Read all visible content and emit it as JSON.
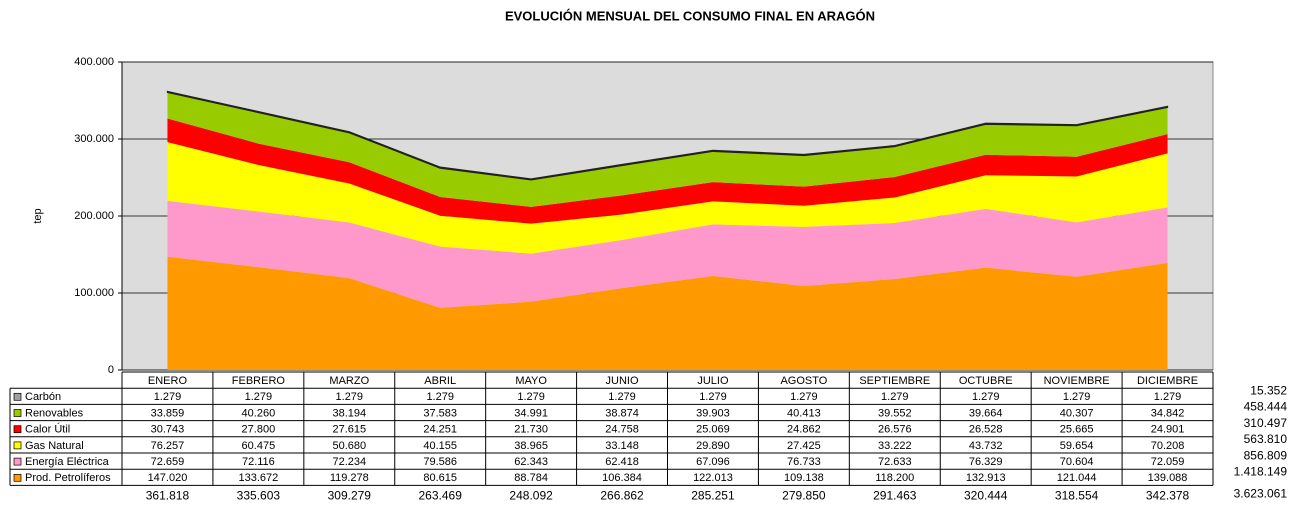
{
  "chart_data": {
    "type": "stacked_area",
    "title": "EVOLUCIÓN MENSUAL DEL CONSUMO FINAL EN ARAGÓN",
    "y_label": "tep",
    "categories": [
      "ENERO",
      "FEBRERO",
      "MARZO",
      "ABRIL",
      "MAYO",
      "JUNIO",
      "JULIO",
      "AGOSTO",
      "SEPTIEMBRE",
      "OCTUBRE",
      "NOVIEMBRE",
      "DICIEMBRE"
    ],
    "ylim": [
      0,
      400000
    ],
    "yticks": [
      0,
      {
        "value": 100000,
        "label": "100.000"
      },
      {
        "value": 200000,
        "label": "200.000"
      },
      {
        "value": 300000,
        "label": "300.000"
      },
      {
        "value": 400000,
        "label": "400.000"
      }
    ],
    "grid": true,
    "series": [
      {
        "name": "Carbón",
        "color": "#a0a0a0",
        "values": [
          1279,
          1279,
          1279,
          1279,
          1279,
          1279,
          1279,
          1279,
          1279,
          1279,
          1279,
          1279
        ],
        "value_labels": [
          "1.279",
          "1.279",
          "1.279",
          "1.279",
          "1.279",
          "1.279",
          "1.279",
          "1.279",
          "1.279",
          "1.279",
          "1.279",
          "1.279"
        ],
        "total": 15352,
        "total_label": "15.352"
      },
      {
        "name": "Renovables",
        "color": "#99cc00",
        "values": [
          33859,
          40260,
          38194,
          37583,
          34991,
          38874,
          39903,
          40413,
          39552,
          39664,
          40307,
          34842
        ],
        "value_labels": [
          "33.859",
          "40.260",
          "38.194",
          "37.583",
          "34.991",
          "38.874",
          "39.903",
          "40.413",
          "39.552",
          "39.664",
          "40.307",
          "34.842"
        ],
        "total": 458444,
        "total_label": "458.444"
      },
      {
        "name": "Calor Útil",
        "color": "#ff0000",
        "values": [
          30743,
          27800,
          27615,
          24251,
          21730,
          24758,
          25069,
          24862,
          26576,
          26528,
          25665,
          24901
        ],
        "value_labels": [
          "30.743",
          "27.800",
          "27.615",
          "24.251",
          "21.730",
          "24.758",
          "25.069",
          "24.862",
          "26.576",
          "26.528",
          "25.665",
          "24.901"
        ],
        "total": 310497,
        "total_label": "310.497"
      },
      {
        "name": "Gas Natural",
        "color": "#ffff00",
        "values": [
          76257,
          60475,
          50680,
          40155,
          38965,
          33148,
          29890,
          27425,
          33222,
          43732,
          59654,
          70208
        ],
        "value_labels": [
          "76.257",
          "60.475",
          "50.680",
          "40.155",
          "38.965",
          "33.148",
          "29.890",
          "27.425",
          "33.222",
          "43.732",
          "59.654",
          "70.208"
        ],
        "total": 563810,
        "total_label": "563.810"
      },
      {
        "name": "Energía Eléctrica",
        "color": "#ff99cc",
        "values": [
          72659,
          72116,
          72234,
          79586,
          62343,
          62418,
          67096,
          76733,
          72633,
          76329,
          70604,
          72059
        ],
        "value_labels": [
          "72.659",
          "72.116",
          "72.234",
          "79.586",
          "62.343",
          "62.418",
          "67.096",
          "76.733",
          "72.633",
          "76.329",
          "70.604",
          "72.059"
        ],
        "total": 856809,
        "total_label": "856.809"
      },
      {
        "name": "Prod. Petrolíferos",
        "color": "#ff9900",
        "values": [
          147020,
          133672,
          119278,
          80615,
          88784,
          106384,
          122013,
          109138,
          118200,
          132913,
          121044,
          139088
        ],
        "value_labels": [
          "147.020",
          "133.672",
          "119.278",
          "80.615",
          "88.784",
          "106.384",
          "122.013",
          "109.138",
          "118.200",
          "132.913",
          "121.044",
          "139.088"
        ],
        "total": 1418149,
        "total_label": "1.418.149"
      }
    ],
    "column_totals": [
      361818,
      335603,
      309279,
      263469,
      248092,
      266862,
      285251,
      279850,
      291463,
      320444,
      318554,
      342378
    ],
    "column_total_labels": [
      "361.818",
      "335.603",
      "309.279",
      "263.469",
      "248.092",
      "266.862",
      "285.251",
      "279.850",
      "291.463",
      "320.444",
      "318.554",
      "342.378"
    ],
    "grand_total": 3623061,
    "grand_total_label": "3.623.061"
  }
}
